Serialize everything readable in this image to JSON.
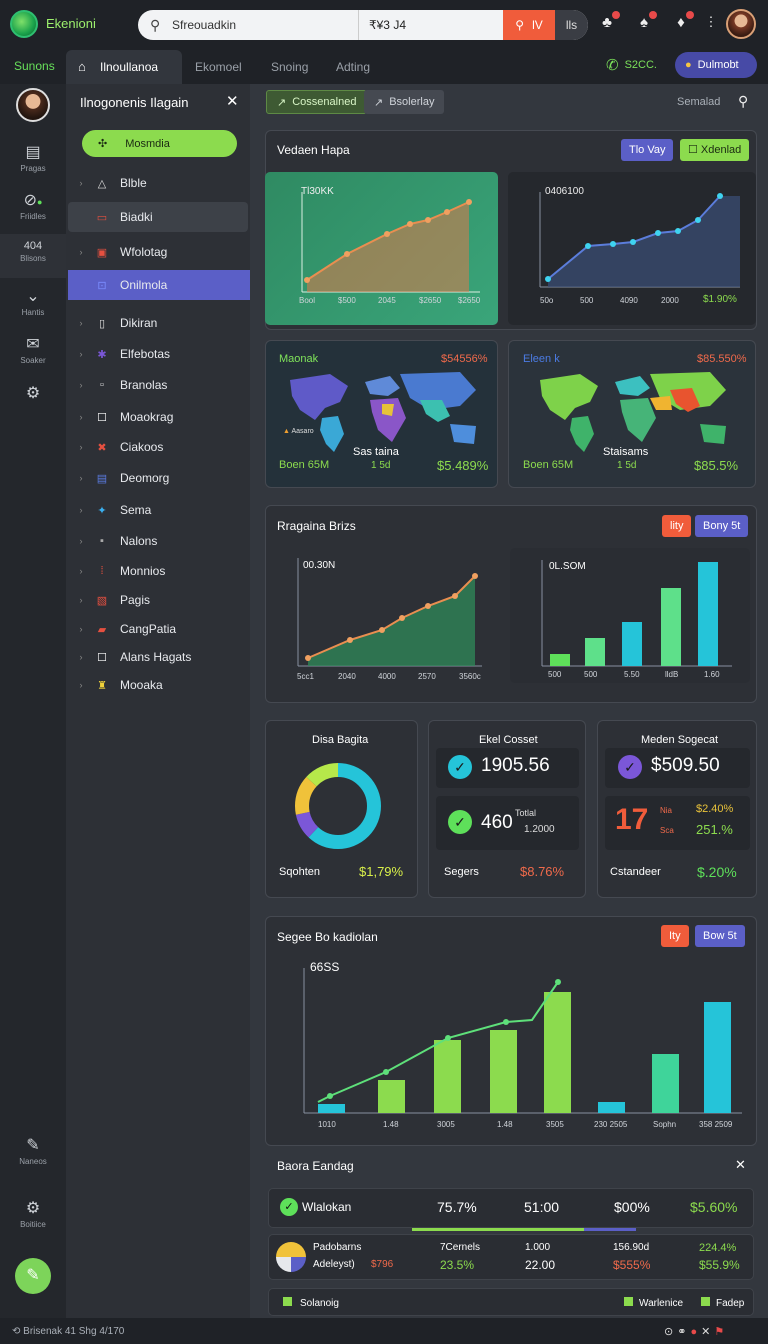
{
  "app": {
    "name": "Ekenioni"
  },
  "search": {
    "query": "Sfreouadkin",
    "value": "₹¥3 J4",
    "btn": "lV",
    "btn2": "lls"
  },
  "nav": {
    "label": "Sunons",
    "tabs": [
      "Ilnoullanoa",
      "Ekomoel",
      "Snoing",
      "Adting"
    ]
  },
  "header": {
    "status": "S2CC.",
    "account": "Dulmobt"
  },
  "rail": [
    {
      "label": "Pragas"
    },
    {
      "label": "Friidles"
    },
    {
      "icon_text": "404",
      "label": "Blisons"
    },
    {
      "label": "Hantis"
    },
    {
      "label": "Soaker"
    },
    {
      "label": ""
    },
    {
      "label": "Naneos"
    },
    {
      "label": "Boitiice"
    }
  ],
  "menu": {
    "title": "Ilnogonenis Ilagain",
    "button": "Mosmdia",
    "items": [
      "Blble",
      "Biadki",
      "Wfolotag",
      "Onilmola",
      "Dikiran",
      "Elfebotas",
      "Branolas",
      "Moaokrag",
      "Ciakoos",
      "Deomorg",
      "Sema",
      "Nalons",
      "Monnios",
      "Pagis",
      "CangPatia",
      "Alans Hagats",
      "Mooaka"
    ]
  },
  "toolbar": {
    "chip1": "Cossenalned",
    "chip2": "Bsolerlay",
    "right": "Semalad"
  },
  "card1": {
    "title": "Vedaen Hapa",
    "btn1": "Tlo Vay",
    "btn2": "Xdenlad",
    "c1": {
      "label": "Tl30KK",
      "yt": [
        "",
        "",
        "",
        "",
        "",
        ""
      ],
      "xt": [
        "Bool",
        "$500",
        "2045",
        "$2650"
      ]
    },
    "c2": {
      "label": "0406100",
      "yt": [
        "",
        "",
        "",
        "",
        "",
        ""
      ],
      "xt": [
        "50o",
        "500",
        "4090",
        "2000",
        "$1.90%"
      ]
    }
  },
  "maps": [
    {
      "title": "Maonak",
      "value": "$54556%",
      "mid": "Sas taina",
      "foot": "Boen 65M",
      "sub": "1 5d",
      "pct": "$5.489%",
      "lg": "Aasaro"
    },
    {
      "title": "Eleen k",
      "value": "$85.550%",
      "mid": "Staisams",
      "foot": "Boen 65M",
      "sub": "1 5d",
      "pct": "$85.5%"
    }
  ],
  "card2": {
    "title": "Rragaina Brizs",
    "btn1": "lity",
    "btn2": "Bony 5t",
    "c1": {
      "label": "00.30N",
      "xt": [
        "5cc1",
        "2040",
        "4000",
        "2570",
        "3560c"
      ]
    },
    "c2": {
      "label": "0L.SOM",
      "xt": [
        "500",
        "500",
        "5.50",
        "lldB",
        "1.60"
      ]
    }
  },
  "kpi": [
    {
      "title": "Disa Bagita",
      "foot": "Sqohten",
      "val": "$1,79%"
    },
    {
      "title": "Ekel Cosset",
      "big1": "1905.56",
      "big2": "460",
      "sub2a": "Totlal",
      "sub2b": "1.2000",
      "foot": "Segers",
      "val": "$8.76%"
    },
    {
      "title": "Meden Sogecat",
      "big1": "$509.50",
      "big3": "17",
      "s1a": "Nia",
      "s1b": "$2.40%",
      "s2a": "Sca",
      "s2b": "251.%",
      "foot": "Cstandeer",
      "val": "$.20%"
    }
  ],
  "card3": {
    "title": "Segee Bo kadiolan",
    "btn1": "Ity",
    "btn2": "Bow 5t",
    "label": "66SS",
    "xt": [
      "1010",
      "1.48",
      "3005",
      "1.48",
      "3505",
      "230 2505",
      "Sophn",
      "358 2509"
    ]
  },
  "table": {
    "title": "Baora Eandag",
    "row1": [
      "Wlalokan",
      "75.7%",
      "51:00",
      "$00%",
      "$5.60%"
    ],
    "row2a": [
      "Padobarns",
      "7Cernels",
      "1.000",
      "156.90d",
      "224.4%"
    ],
    "row2b": [
      "Adeleyst)",
      "$796",
      "23.5%",
      "22.00",
      "$555%",
      "$55.9%"
    ],
    "foot": [
      "Solanoig",
      "Warlenice",
      "Fadep"
    ]
  },
  "status": {
    "left": "Brisenak 41 Shg 4/170"
  },
  "colors": {
    "accent": "#8cdb4e",
    "orange": "#f05c3b",
    "purple": "#5b5fc7",
    "teal": "#25c4d9"
  }
}
